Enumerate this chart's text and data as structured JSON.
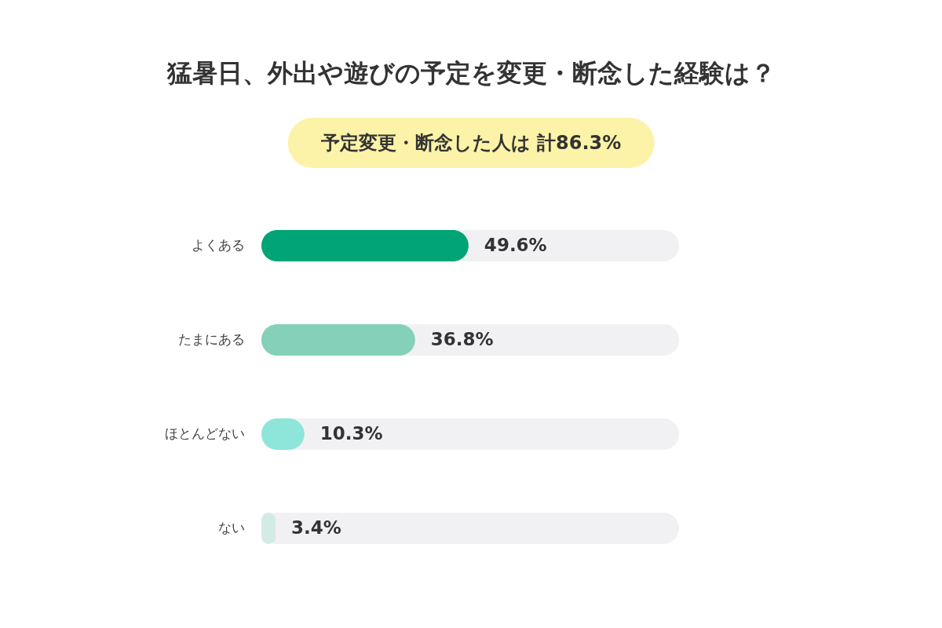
{
  "chart_data": {
    "type": "bar",
    "orientation": "horizontal",
    "title": "猛暑日、外出や遊びの予定を変更・断念した経験は？",
    "subtitle": "予定変更・断念した人は 計86.3%",
    "categories": [
      "よくある",
      "たまにある",
      "ほとんどない",
      "ない"
    ],
    "values": [
      49.6,
      36.8,
      10.3,
      3.4
    ],
    "colors": [
      "#00a475",
      "#84d0b9",
      "#8ee6da",
      "#d3ebe5"
    ],
    "value_labels": [
      "49.6%",
      "36.8%",
      "10.3%",
      "3.4%"
    ],
    "xlim": [
      0,
      100
    ],
    "tick_labels": "y"
  }
}
